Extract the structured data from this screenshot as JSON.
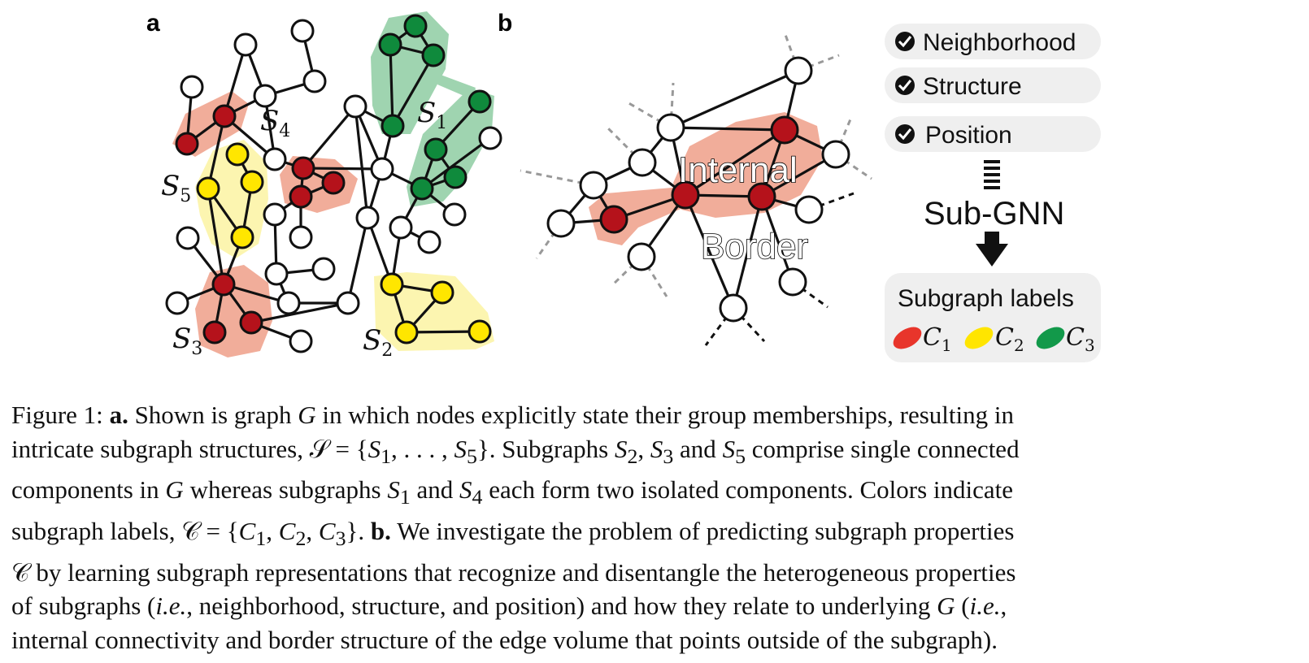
{
  "figure": {
    "panel_a_letter": "a",
    "panel_b_letter": "b",
    "subgraph_labels": {
      "s1": {
        "base": "S",
        "sub": "1"
      },
      "s2": {
        "base": "S",
        "sub": "2"
      },
      "s3": {
        "base": "S",
        "sub": "3"
      },
      "s4": {
        "base": "S",
        "sub": "4"
      },
      "s5": {
        "base": "S",
        "sub": "5"
      }
    },
    "overlay_internal": "Internal",
    "overlay_border": "Border",
    "properties": [
      "Neighborhood",
      "Structure",
      "Position"
    ],
    "model_name": "Sub-GNN",
    "labels_box_title": "Subgraph labels",
    "classes": [
      {
        "base": "C",
        "sub": "1",
        "color": "#e8352b"
      },
      {
        "base": "C",
        "sub": "2",
        "color": "#ffe500"
      },
      {
        "base": "C",
        "sub": "3",
        "color": "#12994a"
      }
    ],
    "colors": {
      "red_node": "#b5121b",
      "yellow_node": "#ffe600",
      "green_node": "#0f8a3c",
      "red_hull": "#f0a48f",
      "yellow_hull": "#fcf5b0",
      "green_hull": "#9fd4b0",
      "pill_bg": "#efefef"
    }
  },
  "caption": {
    "lines": [
      "Figure 1: <b>a.</b> Shown is graph <i>G</i> in which nodes explicitly state their group memberships, resulting in",
      "intricate subgraph structures, 𝒮 = {<i>S</i><sub>1</sub>, . . . , <i>S</i><sub>5</sub>}. Subgraphs <i>S</i><sub>2</sub>, <i>S</i><sub>3</sub> and <i>S</i><sub>5</sub> comprise single connected",
      "components in <i>G</i> whereas subgraphs <i>S</i><sub>1</sub> and <i>S</i><sub>4</sub> each form two isolated components. Colors indicate",
      "subgraph labels, 𝒞 = {<i>C</i><sub>1</sub>, <i>C</i><sub>2</sub>, <i>C</i><sub>3</sub>}. <b>b.</b> We investigate the problem of predicting subgraph properties",
      "𝒞 by learning subgraph representations that recognize and disentangle the heterogeneous properties",
      "of subgraphs (<i>i.e.</i>, neighborhood, structure, and position) and how they relate to underlying <i>G</i> (<i>i.e.</i>,",
      "internal connectivity and border structure of the edge volume that points outside of the subgraph)."
    ]
  }
}
